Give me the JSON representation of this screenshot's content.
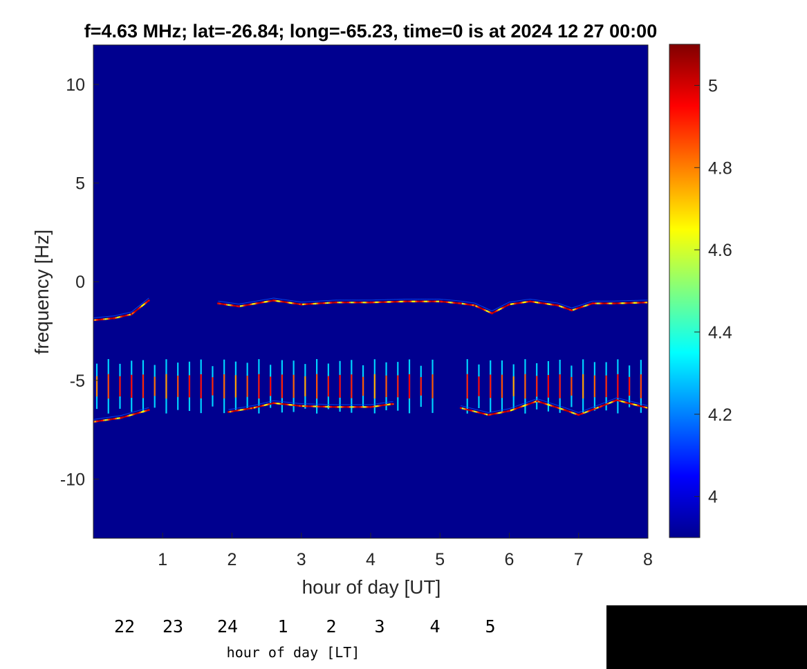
{
  "chart_data": {
    "type": "heatmap",
    "title": "f=4.63 MHz;  lat=-26.84; long=-65.23, time=0 is at 2024 12 27 00:00",
    "xlabel": "hour of day [UT]",
    "ylabel": "frequency [Hz]",
    "xlim": [
      0,
      8
    ],
    "ylim": [
      -13,
      12
    ],
    "xticks": [
      1,
      2,
      3,
      4,
      5,
      6,
      7,
      8
    ],
    "yticks": [
      -10,
      -5,
      0,
      5,
      10
    ],
    "colormap": "jet",
    "clim": [
      3.9,
      5.1
    ],
    "colorbar_ticks": [
      4,
      4.2,
      4.4,
      4.6,
      4.8,
      5
    ],
    "background_value": 3.9,
    "secondary_axis": {
      "label": "hour of day [LT]",
      "ticks": [
        "22",
        "23",
        "24",
        "1",
        "2",
        "3",
        "4",
        "5"
      ]
    },
    "upper_trace": [
      {
        "x": 0.0,
        "y": -1.95
      },
      {
        "x": 0.3,
        "y": -1.85
      },
      {
        "x": 0.55,
        "y": -1.65
      },
      {
        "x": 0.8,
        "y": -0.95
      },
      {
        "x": 1.8,
        "y": -1.1
      },
      {
        "x": 2.1,
        "y": -1.25
      },
      {
        "x": 2.6,
        "y": -0.95
      },
      {
        "x": 3.0,
        "y": -1.15
      },
      {
        "x": 3.5,
        "y": -1.05
      },
      {
        "x": 4.0,
        "y": -1.05
      },
      {
        "x": 4.5,
        "y": -1.0
      },
      {
        "x": 5.0,
        "y": -1.0
      },
      {
        "x": 5.3,
        "y": -1.1
      },
      {
        "x": 5.5,
        "y": -1.2
      },
      {
        "x": 5.75,
        "y": -1.6
      },
      {
        "x": 6.0,
        "y": -1.15
      },
      {
        "x": 6.3,
        "y": -1.0
      },
      {
        "x": 6.7,
        "y": -1.2
      },
      {
        "x": 6.9,
        "y": -1.45
      },
      {
        "x": 7.2,
        "y": -1.1
      },
      {
        "x": 7.5,
        "y": -1.1
      },
      {
        "x": 8.0,
        "y": -1.05
      }
    ],
    "lower_trace": [
      {
        "x": 0.0,
        "y": -7.1
      },
      {
        "x": 0.4,
        "y": -6.9
      },
      {
        "x": 0.8,
        "y": -6.5
      },
      {
        "x": 1.95,
        "y": -6.6
      },
      {
        "x": 2.3,
        "y": -6.4
      },
      {
        "x": 2.6,
        "y": -6.15
      },
      {
        "x": 3.0,
        "y": -6.3
      },
      {
        "x": 3.5,
        "y": -6.35
      },
      {
        "x": 4.0,
        "y": -6.35
      },
      {
        "x": 4.3,
        "y": -6.2
      },
      {
        "x": 5.3,
        "y": -6.4
      },
      {
        "x": 5.7,
        "y": -6.75
      },
      {
        "x": 6.0,
        "y": -6.55
      },
      {
        "x": 6.4,
        "y": -6.05
      },
      {
        "x": 6.8,
        "y": -6.5
      },
      {
        "x": 7.0,
        "y": -6.75
      },
      {
        "x": 7.3,
        "y": -6.35
      },
      {
        "x": 7.55,
        "y": -6.0
      },
      {
        "x": 8.0,
        "y": -6.4
      }
    ],
    "comb_center_hz": -5.3,
    "comb_halfwidth_hz": 1.2,
    "comb_spacing_hours": 0.167
  }
}
